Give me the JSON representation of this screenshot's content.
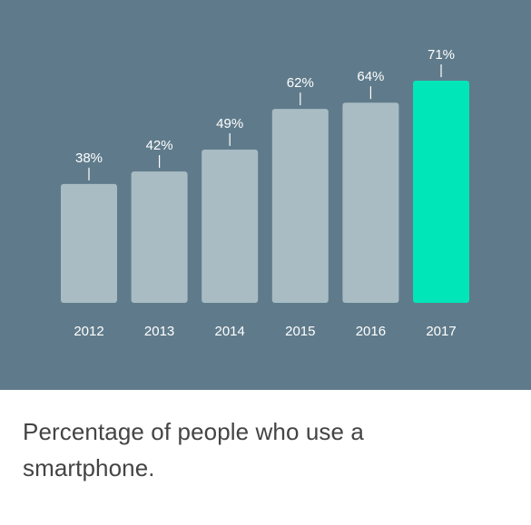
{
  "caption": "Percentage of people who use a smartphone.",
  "colors": {
    "panel_background": "#5f7b8b",
    "bar_default": "#a9bcc3",
    "bar_highlight": "#00e6b8",
    "label_text": "#ffffff",
    "caption_text": "#444444"
  },
  "chart_data": {
    "type": "bar",
    "categories": [
      "2012",
      "2013",
      "2014",
      "2015",
      "2016",
      "2017"
    ],
    "values": [
      38,
      42,
      49,
      62,
      64,
      71
    ],
    "value_labels": [
      "38%",
      "42%",
      "49%",
      "62%",
      "64%",
      "71%"
    ],
    "highlight_category": "2017",
    "unit": "%",
    "title": "",
    "xlabel": "",
    "ylabel": "",
    "ylim": [
      0,
      100
    ],
    "grid": false,
    "legend": "none"
  }
}
